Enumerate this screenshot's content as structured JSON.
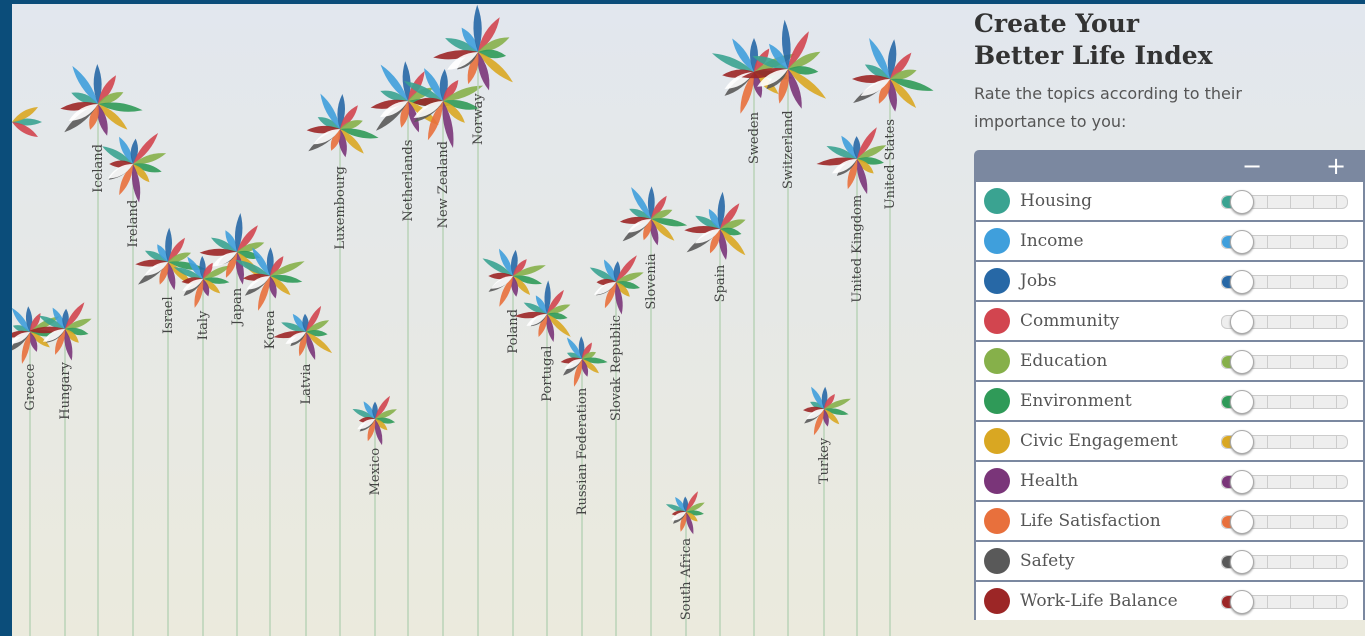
{
  "panel": {
    "title": "Create Your Better Life Index",
    "subtitle": "Rate the topics according to their importance to you:",
    "minus": "−",
    "plus": "+",
    "topics": [
      {
        "name": "Housing",
        "color": "#3aa391"
      },
      {
        "name": "Income",
        "color": "#3f9fdc"
      },
      {
        "name": "Jobs",
        "color": "#2768a6"
      },
      {
        "name": "Community",
        "color": "#d2454f"
      },
      {
        "name": "Education",
        "color": "#86b04a"
      },
      {
        "name": "Environment",
        "color": "#2f9a58"
      },
      {
        "name": "Civic Engagement",
        "color": "#d9a722"
      },
      {
        "name": "Health",
        "color": "#7a3579"
      },
      {
        "name": "Life Satisfaction",
        "color": "#e8703c"
      },
      {
        "name": "Safety",
        "color": "#595959"
      },
      {
        "name": "Work-Life Balance",
        "color": "#9c2626"
      }
    ]
  },
  "countries": [
    "Greece",
    "Hungary",
    "Iceland",
    "Ireland",
    "Israel",
    "Italy",
    "Japan",
    "Korea",
    "Latvia",
    "Luxembourg",
    "Mexico",
    "Netherlands",
    "New Zealand",
    "Norway",
    "Poland",
    "Portugal",
    "Russian Federation",
    "Slovak Republic",
    "Slovenia",
    "South Africa",
    "Spain",
    "Sweden",
    "Switzerland",
    "Turkey",
    "United Kingdom",
    "United States"
  ]
}
